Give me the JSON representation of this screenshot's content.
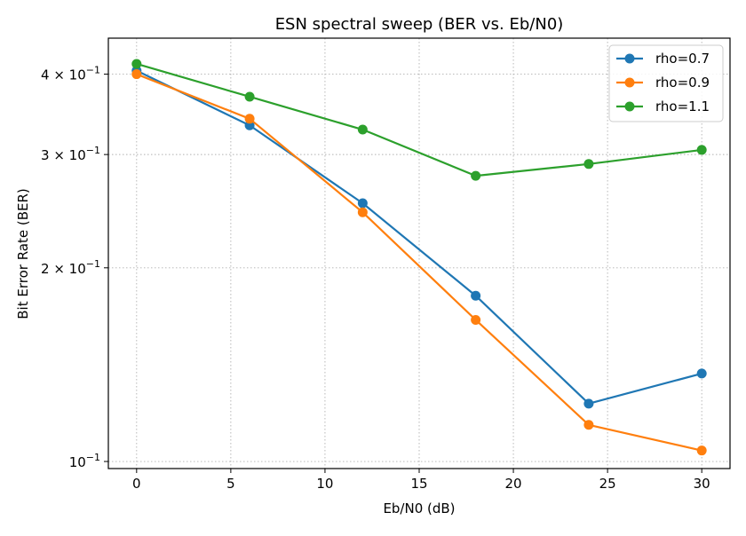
{
  "chart_data": {
    "type": "line",
    "title": "ESN spectral sweep (BER vs. Eb/N0)",
    "xlabel": "Eb/N0 (dB)",
    "ylabel": "Bit Error Rate (BER)",
    "x": [
      0,
      6,
      12,
      18,
      24,
      30
    ],
    "xlim": [
      -1.5,
      31.5
    ],
    "ylim": [
      0.0975,
      0.455
    ],
    "yscale": "log",
    "grid": true,
    "legend_position": "top-right",
    "xticks": [
      {
        "value": 0,
        "label": "0"
      },
      {
        "value": 5,
        "label": "5"
      },
      {
        "value": 10,
        "label": "10"
      },
      {
        "value": 15,
        "label": "15"
      },
      {
        "value": 20,
        "label": "20"
      },
      {
        "value": 25,
        "label": "25"
      },
      {
        "value": 30,
        "label": "30"
      }
    ],
    "yticks": [
      {
        "value": 0.1,
        "mantissa": "10",
        "exponent": "−1"
      },
      {
        "value": 0.2,
        "mantissa": "2 × 10",
        "exponent": "−1"
      },
      {
        "value": 0.3,
        "mantissa": "3 × 10",
        "exponent": "−1"
      },
      {
        "value": 0.4,
        "mantissa": "4 × 10",
        "exponent": "−1"
      }
    ],
    "series": [
      {
        "name": "rho=0.7",
        "color": "#1f77b4",
        "values": [
          0.405,
          0.333,
          0.252,
          0.181,
          0.123,
          0.137
        ]
      },
      {
        "name": "rho=0.9",
        "color": "#ff7f0e",
        "values": [
          0.4,
          0.341,
          0.244,
          0.166,
          0.114,
          0.104
        ]
      },
      {
        "name": "rho=1.1",
        "color": "#2ca02c",
        "values": [
          0.415,
          0.369,
          0.328,
          0.278,
          0.29,
          0.305
        ]
      }
    ]
  }
}
